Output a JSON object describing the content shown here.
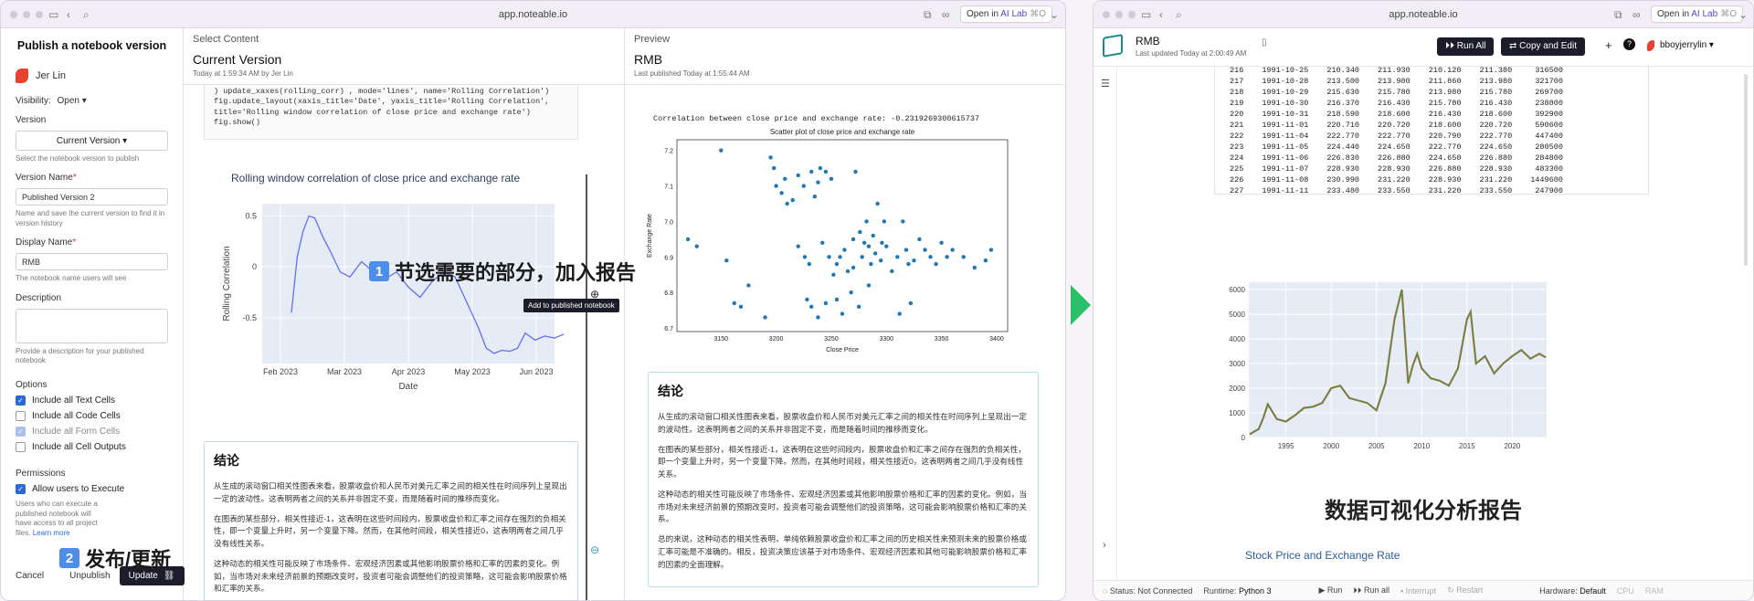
{
  "left_window": {
    "url": "app.noteable.io",
    "open_in": {
      "prefix": "Open in",
      "target": "AI Lab",
      "shortcut": "⌘O"
    },
    "sidebar": {
      "title": "Publish a notebook version",
      "user": "Jer Lin",
      "visibility_label": "Visibility:",
      "visibility_value": "Open",
      "version_label": "Version",
      "version_value": "Current Version",
      "version_hint": "Select the notebook version to publish",
      "version_name_label": "Version Name",
      "version_name_value": "Published Version 2",
      "version_name_hint": "Name and save the current version to find it in version history",
      "display_name_label": "Display Name",
      "display_name_value": "RMB",
      "display_name_hint": "The notebook name users will see",
      "description_label": "Description",
      "description_hint": "Provide a description for your published notebook",
      "options_label": "Options",
      "options": [
        {
          "label": "Include all Text Cells",
          "state": "on"
        },
        {
          "label": "Include all Code Cells",
          "state": "off"
        },
        {
          "label": "Include all Form Cells",
          "state": "dim"
        },
        {
          "label": "Include all Cell Outputs",
          "state": "off"
        }
      ],
      "permissions_label": "Permissions",
      "allow_exec": "Allow users to Execute",
      "allow_exec_hint": "Users who can execute a published notebook will have access to all project files.",
      "learn_more": "Learn more",
      "cancel": "Cancel",
      "unpublish": "Unpublish",
      "update": "Update"
    },
    "select": {
      "heading": "Select Content",
      "title": "Current Version",
      "meta": "Today at 1:59:34 AM by Jer Lin",
      "code_lines": [
        ") update_xaxes(rolling_corr) , mode='lines', name='Rolling Correlation')",
        "fig.update_layout(xaxis_title='Date', yaxis_title='Rolling Correlation',",
        "title='Rolling window correlation of close price and exchange rate')",
        "fig.show()"
      ],
      "chart_title": "Rolling window correlation of close price and exchange rate",
      "tooltip": "Add to published notebook",
      "conclusion_title": "结论",
      "paragraphs": [
        "从生成的滚动窗口相关性图表来看，股票收盘价和人民币对美元汇率之间的相关性在时间序列上呈现出一定的波动性。这表明两者之间的关系并非固定不变，而是随着时间的推移而变化。",
        "在图表的某些部分，相关性接近-1，这表明在这些时间段内，股票收盘价和汇率之间存在强烈的负相关性，即一个变量上升时，另一个变量下降。然而，在其他时间段，相关性接近0，这表明两者之间几乎没有线性关系。",
        "这种动态的相关性可能反映了市场条件、宏观经济因素或其他影响股票价格和汇率的因素的变化。例如，当市场对未来经济前景的预期改变时，投资者可能会调整他们的投资策略，这可能会影响股票价格和汇率的关系。"
      ]
    },
    "preview": {
      "heading": "Preview",
      "title": "RMB",
      "meta": "Last published Today at 1:55:44 AM",
      "corr_text": "Correlation between close price and exchange rate: -0.2319269300615737",
      "conclusion_title": "结论",
      "paragraphs": [
        "从生成的滚动窗口相关性图表来看，股票收盘价和人民币对美元汇率之间的相关性在时间序列上呈现出一定的波动性。这表明两者之间的关系并非固定不变，而是随着时间的推移而变化。",
        "在图表的某些部分，相关性接近-1，这表明在这些时间段内，股票收盘价和汇率之间存在强烈的负相关性，即一个变量上升时，另一个变量下降。然而，在其他时间段，相关性接近0，这表明两者之间几乎没有线性关系。",
        "这种动态的相关性可能反映了市场条件、宏观经济因素或其他影响股票价格和汇率的因素的变化。例如，当市场对未来经济前景的预期改变时，投资者可能会调整他们的投资策略，这可能会影响股票价格和汇率的关系。",
        "总的来说，这种动态的相关性表明，单纯依赖股票收盘价和汇率之间的历史相关性来预测未来的股票价格或汇率可能是不准确的。相反，投资决策应该基于对市场条件、宏观经济因素和其他可能影响股票价格和汇率的因素的全面理解。"
      ]
    },
    "overlay1": {
      "num": "1",
      "text": "节选需要的部分，加入报告"
    },
    "overlay2": {
      "num": "2",
      "text": "发布/更新"
    }
  },
  "right_window": {
    "url": "app.noteable.io",
    "open_in": {
      "prefix": "Open in",
      "target": "AI Lab",
      "shortcut": "⌘O"
    },
    "title": "RMB",
    "updated": "Last updated Today at 2:00:49 AM",
    "run_all": "Run All",
    "copy_edit": "Copy and Edit",
    "username": "bboyjerrylin",
    "table_rows": [
      [
        "216",
        "1991-10-25",
        "210.340",
        "211.930",
        "210.120",
        "211.380",
        "316500"
      ],
      [
        "217",
        "1991-10-28",
        "213.500",
        "213.980",
        "211.860",
        "213.980",
        "321700"
      ],
      [
        "218",
        "1991-10-29",
        "215.630",
        "215.780",
        "213.980",
        "215.780",
        "269700"
      ],
      [
        "219",
        "1991-10-30",
        "216.370",
        "216.430",
        "215.780",
        "216.430",
        "238800"
      ],
      [
        "220",
        "1991-10-31",
        "218.590",
        "218.600",
        "216.430",
        "218.600",
        "392900"
      ],
      [
        "221",
        "1991-11-01",
        "220.710",
        "220.720",
        "218.600",
        "220.720",
        "590600"
      ],
      [
        "222",
        "1991-11-04",
        "222.770",
        "222.770",
        "220.790",
        "222.770",
        "447400"
      ],
      [
        "223",
        "1991-11-05",
        "224.440",
        "224.650",
        "222.770",
        "224.650",
        "280500"
      ],
      [
        "224",
        "1991-11-06",
        "226.830",
        "226.880",
        "224.650",
        "226.880",
        "284800"
      ],
      [
        "225",
        "1991-11-07",
        "228.930",
        "228.930",
        "226.880",
        "228.930",
        "483300"
      ],
      [
        "226",
        "1991-11-08",
        "230.990",
        "231.220",
        "228.930",
        "231.220",
        "1449600"
      ],
      [
        "227",
        "1991-11-11",
        "233.480",
        "233.550",
        "231.220",
        "233.550",
        "247900"
      ]
    ],
    "report_title": "数据可视化分析报告",
    "section_title": "Stock Price and Exchange Rate",
    "status": {
      "status": "Status: Not Connected",
      "runtime": "Runtime:",
      "runtime_value": "Python 3",
      "run": "Run",
      "run_all": "Run all",
      "interrupt": "Interrupt",
      "restart": "Restart",
      "hardware": "Hardware:",
      "hardware_value": "Default",
      "cpu": "CPU",
      "ram": "RAM"
    }
  },
  "chart_data": [
    {
      "type": "line",
      "title": "Rolling window correlation of close price and exchange rate",
      "xlabel": "Date",
      "ylabel": "Rolling Correlation",
      "x_ticks": [
        "Feb 2023",
        "Mar 2023",
        "Apr 2023",
        "May 2023",
        "Jun 2023"
      ],
      "y_ticks": [
        0.5,
        0,
        -0.5
      ],
      "ylim": [
        -0.95,
        0.62
      ],
      "xlim": [
        0,
        150
      ],
      "series": [
        {
          "x": [
            0,
            3,
            6,
            9,
            12,
            16,
            20,
            25,
            30,
            36,
            42,
            48,
            54,
            60,
            66,
            72,
            78,
            84,
            90,
            96,
            100,
            104,
            108,
            112,
            116,
            120,
            125,
            130,
            135,
            140,
            145
          ],
          "values": [
            -0.45,
            0.1,
            0.35,
            0.5,
            0.48,
            0.3,
            0.15,
            -0.05,
            -0.1,
            0.05,
            -0.05,
            -0.12,
            -0.05,
            -0.2,
            -0.3,
            -0.15,
            -0.05,
            -0.1,
            -0.35,
            -0.6,
            -0.8,
            -0.85,
            -0.82,
            -0.83,
            -0.8,
            -0.65,
            -0.72,
            -0.68,
            -0.7,
            -0.66,
            -0.68
          ],
          "color": "#636efa"
        }
      ]
    },
    {
      "type": "scatter",
      "title": "Scatter plot of close price and exchange rate",
      "xlabel": "Close Price",
      "ylabel": "Exchange Rate",
      "x_ticks": [
        3150,
        3200,
        3250,
        3300,
        3350,
        3400
      ],
      "y_ticks": [
        6.7,
        6.8,
        6.9,
        7.0,
        7.1,
        7.2
      ],
      "xlim": [
        3110,
        3410
      ],
      "ylim": [
        6.69,
        7.23
      ],
      "points": [
        [
          3120,
          6.95
        ],
        [
          3128,
          6.93
        ],
        [
          3150,
          7.2
        ],
        [
          3155,
          6.89
        ],
        [
          3162,
          6.77
        ],
        [
          3168,
          6.76
        ],
        [
          3175,
          6.82
        ],
        [
          3190,
          6.73
        ],
        [
          3195,
          7.18
        ],
        [
          3198,
          7.15
        ],
        [
          3200,
          7.1
        ],
        [
          3205,
          7.08
        ],
        [
          3208,
          7.12
        ],
        [
          3210,
          7.05
        ],
        [
          3215,
          7.06
        ],
        [
          3220,
          7.13
        ],
        [
          3225,
          7.1
        ],
        [
          3228,
          6.78
        ],
        [
          3232,
          7.14
        ],
        [
          3235,
          7.07
        ],
        [
          3238,
          7.11
        ],
        [
          3240,
          7.15
        ],
        [
          3245,
          7.14
        ],
        [
          3250,
          7.12
        ],
        [
          3252,
          6.85
        ],
        [
          3255,
          6.88
        ],
        [
          3258,
          6.9
        ],
        [
          3262,
          6.92
        ],
        [
          3265,
          6.86
        ],
        [
          3268,
          6.8
        ],
        [
          3270,
          6.87
        ],
        [
          3272,
          7.14
        ],
        [
          3275,
          6.76
        ],
        [
          3278,
          6.9
        ],
        [
          3280,
          6.94
        ],
        [
          3282,
          7.0
        ],
        [
          3284,
          6.82
        ],
        [
          3286,
          6.88
        ],
        [
          3288,
          6.96
        ],
        [
          3290,
          6.91
        ],
        [
          3292,
          7.05
        ],
        [
          3295,
          6.89
        ],
        [
          3298,
          7.0
        ],
        [
          3300,
          6.93
        ],
        [
          3305,
          6.86
        ],
        [
          3310,
          6.9
        ],
        [
          3312,
          6.74
        ],
        [
          3315,
          7.0
        ],
        [
          3318,
          6.92
        ],
        [
          3320,
          6.88
        ],
        [
          3322,
          6.77
        ],
        [
          3325,
          6.89
        ],
        [
          3330,
          6.95
        ],
        [
          3335,
          6.92
        ],
        [
          3340,
          6.9
        ],
        [
          3345,
          6.88
        ],
        [
          3350,
          6.94
        ],
        [
          3355,
          6.9
        ],
        [
          3360,
          6.92
        ],
        [
          3370,
          6.9
        ],
        [
          3380,
          6.87
        ],
        [
          3390,
          6.89
        ],
        [
          3395,
          6.92
        ],
        [
          3260,
          6.74
        ],
        [
          3255,
          6.78
        ],
        [
          3245,
          6.77
        ],
        [
          3238,
          6.73
        ],
        [
          3232,
          6.76
        ],
        [
          3220,
          6.93
        ],
        [
          3226,
          6.9
        ],
        [
          3230,
          6.88
        ],
        [
          3242,
          6.94
        ],
        [
          3248,
          6.9
        ],
        [
          3270,
          6.95
        ],
        [
          3276,
          6.97
        ],
        [
          3284,
          6.93
        ],
        [
          3296,
          6.94
        ]
      ],
      "color": "#1f77b4"
    },
    {
      "type": "line",
      "title": "",
      "x_ticks": [
        1995,
        2000,
        2005,
        2010,
        2015,
        2020
      ],
      "y_ticks": [
        0,
        1000,
        2000,
        3000,
        4000,
        5000,
        6000
      ],
      "xlim": [
        1990.9,
        2023.8
      ],
      "ylim": [
        0,
        6300
      ],
      "series": [
        {
          "x": [
            1991,
            1992,
            1992.5,
            1993,
            1994,
            1995,
            1996,
            1997,
            1998,
            1999,
            2000,
            2001,
            2002,
            2003,
            2004,
            2005,
            2006,
            2007,
            2007.8,
            2008.5,
            2009,
            2009.5,
            2010,
            2011,
            2012,
            2013,
            2014,
            2015,
            2015.4,
            2016,
            2017,
            2018,
            2019,
            2020,
            2021,
            2022,
            2023,
            2023.7
          ],
          "values": [
            130,
            350,
            800,
            1350,
            750,
            650,
            900,
            1200,
            1250,
            1400,
            2000,
            2100,
            1600,
            1500,
            1400,
            1100,
            2200,
            4800,
            6000,
            2200,
            2900,
            3400,
            2800,
            2400,
            2300,
            2100,
            2800,
            4800,
            5100,
            3000,
            3300,
            2600,
            3000,
            3300,
            3550,
            3200,
            3400,
            3250
          ],
          "color": "#2ca02c",
          "highlight": "#d62728"
        }
      ]
    }
  ]
}
